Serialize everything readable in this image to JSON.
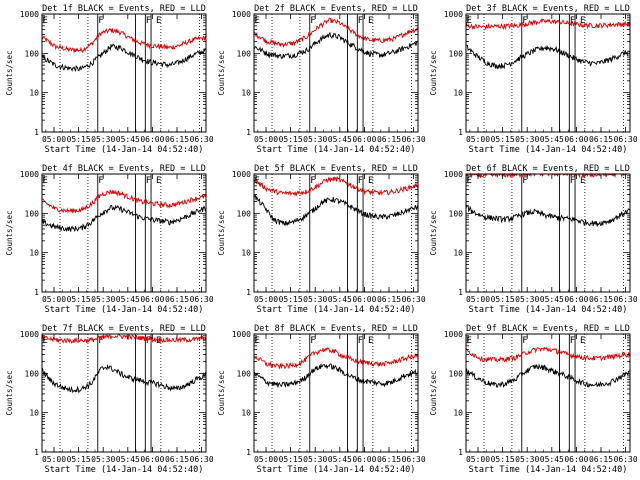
{
  "figure": {
    "xlabel": "Start Time (14-Jan-14 04:52:40)",
    "ylabel": "Counts/sec",
    "legend_note": "BLACK = Events, RED = LLD"
  },
  "chart_data": {
    "type": "line",
    "layout": "3x3 grid",
    "x_unit": "minutes after 04:52:40",
    "xlim": [
      0,
      100
    ],
    "x_ticks": [
      {
        "label": "05:00",
        "x": 7.33
      },
      {
        "label": "05:15",
        "x": 22.33
      },
      {
        "label": "05:30",
        "x": 37.33
      },
      {
        "label": "05:45",
        "x": 52.33
      },
      {
        "label": "06:00",
        "x": 67.33
      },
      {
        "label": "06:15",
        "x": 82.33
      },
      {
        "label": "06:30",
        "x": 97.33
      }
    ],
    "y_scale": "log",
    "ylim": [
      1,
      1000
    ],
    "y_ticks": [
      {
        "label": "1",
        "v": 1
      },
      {
        "label": "10",
        "v": 10
      },
      {
        "label": "100",
        "v": 100
      },
      {
        "label": "1000",
        "v": 1000
      }
    ],
    "series_colors": {
      "events": "#000000",
      "lld": "#dd0000"
    },
    "vertical_lines": {
      "dotted": [
        11,
        28,
        72.5,
        96
      ],
      "solid": [
        34,
        57,
        63,
        66.5
      ]
    },
    "flags": [
      {
        "label": "E",
        "x": 0.3
      },
      {
        "label": "F",
        "x": 34.3
      },
      {
        "label": "F",
        "x": 63.3
      },
      {
        "label": "E",
        "x": 69.5
      }
    ],
    "panels": [
      {
        "id": "1f",
        "title": "Det 1f BLACK = Events, RED = LLD",
        "events": [
          [
            0,
            80
          ],
          [
            8,
            50
          ],
          [
            16,
            42
          ],
          [
            24,
            40
          ],
          [
            30,
            55
          ],
          [
            36,
            90
          ],
          [
            42,
            150
          ],
          [
            48,
            140
          ],
          [
            54,
            100
          ],
          [
            60,
            75
          ],
          [
            66,
            60
          ],
          [
            72,
            55
          ],
          [
            78,
            50
          ],
          [
            84,
            60
          ],
          [
            92,
            90
          ],
          [
            100,
            120
          ]
        ],
        "lld": [
          [
            0,
            260
          ],
          [
            8,
            150
          ],
          [
            16,
            125
          ],
          [
            24,
            120
          ],
          [
            30,
            170
          ],
          [
            36,
            330
          ],
          [
            42,
            390
          ],
          [
            48,
            340
          ],
          [
            54,
            240
          ],
          [
            60,
            185
          ],
          [
            66,
            160
          ],
          [
            72,
            150
          ],
          [
            78,
            140
          ],
          [
            84,
            160
          ],
          [
            92,
            220
          ],
          [
            100,
            250
          ]
        ]
      },
      {
        "id": "2f",
        "title": "Det 2f BLACK = Events, RED = LLD",
        "events": [
          [
            0,
            150
          ],
          [
            8,
            100
          ],
          [
            16,
            85
          ],
          [
            24,
            90
          ],
          [
            32,
            120
          ],
          [
            40,
            220
          ],
          [
            46,
            300
          ],
          [
            52,
            260
          ],
          [
            58,
            180
          ],
          [
            64,
            130
          ],
          [
            70,
            100
          ],
          [
            78,
            90
          ],
          [
            86,
            110
          ],
          [
            94,
            150
          ],
          [
            100,
            190
          ]
        ],
        "lld": [
          [
            0,
            330
          ],
          [
            8,
            200
          ],
          [
            16,
            170
          ],
          [
            24,
            180
          ],
          [
            32,
            260
          ],
          [
            40,
            500
          ],
          [
            46,
            700
          ],
          [
            52,
            600
          ],
          [
            58,
            400
          ],
          [
            64,
            280
          ],
          [
            70,
            220
          ],
          [
            78,
            210
          ],
          [
            86,
            240
          ],
          [
            94,
            350
          ],
          [
            100,
            430
          ]
        ]
      },
      {
        "id": "3f",
        "title": "Det 3f BLACK = Events, RED = LLD",
        "events": [
          [
            0,
            150
          ],
          [
            6,
            90
          ],
          [
            12,
            60
          ],
          [
            18,
            48
          ],
          [
            24,
            50
          ],
          [
            30,
            65
          ],
          [
            36,
            90
          ],
          [
            42,
            120
          ],
          [
            48,
            140
          ],
          [
            54,
            130
          ],
          [
            60,
            100
          ],
          [
            66,
            75
          ],
          [
            72,
            60
          ],
          [
            80,
            55
          ],
          [
            88,
            70
          ],
          [
            96,
            100
          ],
          [
            100,
            110
          ]
        ],
        "lld": [
          [
            0,
            500
          ],
          [
            10,
            470
          ],
          [
            20,
            490
          ],
          [
            30,
            500
          ],
          [
            36,
            560
          ],
          [
            44,
            640
          ],
          [
            52,
            650
          ],
          [
            60,
            600
          ],
          [
            66,
            560
          ],
          [
            72,
            520
          ],
          [
            80,
            510
          ],
          [
            90,
            540
          ],
          [
            100,
            560
          ]
        ]
      },
      {
        "id": "4f",
        "title": "Det 4f BLACK = Events, RED = LLD",
        "events": [
          [
            0,
            60
          ],
          [
            8,
            45
          ],
          [
            16,
            40
          ],
          [
            24,
            42
          ],
          [
            30,
            60
          ],
          [
            36,
            100
          ],
          [
            42,
            140
          ],
          [
            48,
            130
          ],
          [
            54,
            100
          ],
          [
            60,
            80
          ],
          [
            66,
            70
          ],
          [
            72,
            65
          ],
          [
            78,
            60
          ],
          [
            84,
            70
          ],
          [
            92,
            100
          ],
          [
            100,
            140
          ]
        ],
        "lld": [
          [
            0,
            210
          ],
          [
            8,
            130
          ],
          [
            16,
            115
          ],
          [
            24,
            120
          ],
          [
            30,
            170
          ],
          [
            36,
            300
          ],
          [
            42,
            360
          ],
          [
            48,
            320
          ],
          [
            54,
            250
          ],
          [
            60,
            200
          ],
          [
            66,
            180
          ],
          [
            72,
            170
          ],
          [
            78,
            160
          ],
          [
            84,
            180
          ],
          [
            92,
            230
          ],
          [
            100,
            270
          ]
        ]
      },
      {
        "id": "5f",
        "title": "Det 5f BLACK = Events, RED = LLD",
        "events": [
          [
            0,
            280
          ],
          [
            6,
            150
          ],
          [
            12,
            70
          ],
          [
            18,
            55
          ],
          [
            24,
            60
          ],
          [
            30,
            80
          ],
          [
            36,
            120
          ],
          [
            42,
            200
          ],
          [
            48,
            230
          ],
          [
            54,
            190
          ],
          [
            60,
            140
          ],
          [
            66,
            100
          ],
          [
            72,
            85
          ],
          [
            78,
            80
          ],
          [
            86,
            90
          ],
          [
            94,
            120
          ],
          [
            100,
            150
          ]
        ],
        "lld": [
          [
            0,
            700
          ],
          [
            8,
            420
          ],
          [
            16,
            330
          ],
          [
            24,
            320
          ],
          [
            32,
            360
          ],
          [
            38,
            480
          ],
          [
            44,
            700
          ],
          [
            50,
            750
          ],
          [
            56,
            600
          ],
          [
            62,
            450
          ],
          [
            68,
            360
          ],
          [
            76,
            330
          ],
          [
            84,
            350
          ],
          [
            92,
            420
          ],
          [
            100,
            520
          ]
        ]
      },
      {
        "id": "6f",
        "title": "Det 6f BLACK = Events, RED = LLD",
        "events": [
          [
            0,
            150
          ],
          [
            6,
            100
          ],
          [
            12,
            80
          ],
          [
            18,
            75
          ],
          [
            24,
            70
          ],
          [
            30,
            80
          ],
          [
            36,
            100
          ],
          [
            42,
            110
          ],
          [
            48,
            90
          ],
          [
            54,
            80
          ],
          [
            60,
            75
          ],
          [
            66,
            70
          ],
          [
            72,
            60
          ],
          [
            80,
            55
          ],
          [
            88,
            65
          ],
          [
            96,
            100
          ],
          [
            100,
            120
          ]
        ],
        "lld": [
          [
            0,
            1000
          ],
          [
            10,
            920
          ],
          [
            20,
            950
          ],
          [
            30,
            960
          ],
          [
            40,
            1020
          ],
          [
            50,
            1050
          ],
          [
            60,
            1000
          ],
          [
            70,
            970
          ],
          [
            80,
            950
          ],
          [
            90,
            990
          ],
          [
            100,
            1050
          ]
        ]
      },
      {
        "id": "7f",
        "title": "Det 7f BLACK = Events, RED = LLD",
        "events": [
          [
            0,
            120
          ],
          [
            6,
            60
          ],
          [
            12,
            45
          ],
          [
            18,
            38
          ],
          [
            24,
            40
          ],
          [
            30,
            55
          ],
          [
            36,
            130
          ],
          [
            40,
            150
          ],
          [
            46,
            110
          ],
          [
            52,
            80
          ],
          [
            58,
            70
          ],
          [
            64,
            60
          ],
          [
            70,
            55
          ],
          [
            76,
            45
          ],
          [
            82,
            40
          ],
          [
            88,
            50
          ],
          [
            94,
            70
          ],
          [
            100,
            90
          ]
        ],
        "lld": [
          [
            0,
            800
          ],
          [
            10,
            700
          ],
          [
            20,
            680
          ],
          [
            30,
            700
          ],
          [
            36,
            800
          ],
          [
            44,
            900
          ],
          [
            52,
            850
          ],
          [
            60,
            800
          ],
          [
            66,
            750
          ],
          [
            72,
            720
          ],
          [
            80,
            700
          ],
          [
            90,
            720
          ],
          [
            100,
            780
          ]
        ]
      },
      {
        "id": "8f",
        "title": "Det 8f BLACK = Events, RED = LLD",
        "events": [
          [
            0,
            100
          ],
          [
            8,
            60
          ],
          [
            16,
            50
          ],
          [
            24,
            55
          ],
          [
            30,
            70
          ],
          [
            36,
            120
          ],
          [
            42,
            160
          ],
          [
            48,
            150
          ],
          [
            54,
            110
          ],
          [
            60,
            80
          ],
          [
            66,
            65
          ],
          [
            72,
            60
          ],
          [
            78,
            55
          ],
          [
            84,
            60
          ],
          [
            92,
            90
          ],
          [
            100,
            110
          ]
        ],
        "lld": [
          [
            0,
            280
          ],
          [
            8,
            170
          ],
          [
            16,
            150
          ],
          [
            24,
            160
          ],
          [
            30,
            200
          ],
          [
            36,
            320
          ],
          [
            42,
            400
          ],
          [
            48,
            380
          ],
          [
            54,
            280
          ],
          [
            60,
            220
          ],
          [
            66,
            190
          ],
          [
            72,
            180
          ],
          [
            78,
            170
          ],
          [
            84,
            190
          ],
          [
            92,
            240
          ],
          [
            100,
            290
          ]
        ]
      },
      {
        "id": "9f",
        "title": "Det 9f BLACK = Events, RED = LLD",
        "events": [
          [
            0,
            120
          ],
          [
            6,
            80
          ],
          [
            12,
            60
          ],
          [
            18,
            50
          ],
          [
            24,
            55
          ],
          [
            30,
            70
          ],
          [
            36,
            110
          ],
          [
            42,
            150
          ],
          [
            48,
            140
          ],
          [
            54,
            110
          ],
          [
            60,
            90
          ],
          [
            66,
            70
          ],
          [
            72,
            55
          ],
          [
            80,
            50
          ],
          [
            88,
            60
          ],
          [
            96,
            90
          ],
          [
            100,
            110
          ]
        ],
        "lld": [
          [
            0,
            380
          ],
          [
            10,
            230
          ],
          [
            20,
            220
          ],
          [
            30,
            250
          ],
          [
            36,
            330
          ],
          [
            44,
            420
          ],
          [
            52,
            400
          ],
          [
            60,
            320
          ],
          [
            66,
            280
          ],
          [
            72,
            250
          ],
          [
            80,
            240
          ],
          [
            90,
            270
          ],
          [
            100,
            310
          ]
        ]
      }
    ]
  }
}
